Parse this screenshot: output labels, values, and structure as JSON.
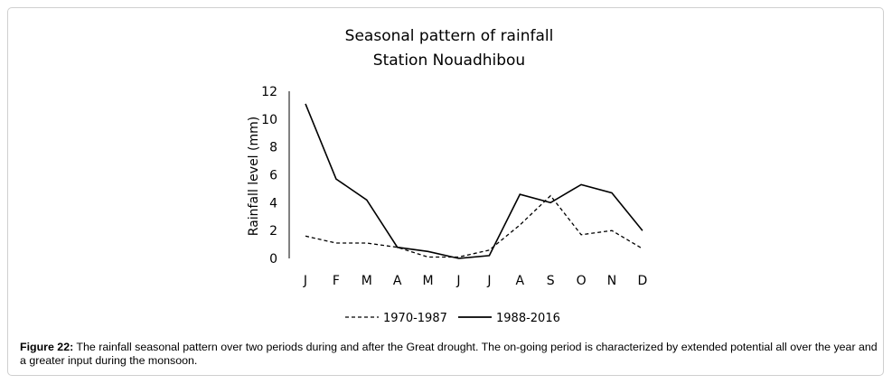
{
  "chart_data": {
    "type": "line",
    "title": "Seasonal pattern of rainfall",
    "subtitle": "Station  Nouadhibou",
    "xlabel": "",
    "ylabel": "Rainfall level (mm)",
    "categories": [
      "J",
      "F",
      "M",
      "A",
      "M",
      "J",
      "J",
      "A",
      "S",
      "O",
      "N",
      "D"
    ],
    "ylim": [
      0,
      12
    ],
    "yticks": [
      "0",
      "2",
      "4",
      "6",
      "8",
      "10",
      "12"
    ],
    "grid": false,
    "legend_position": "bottom",
    "series": [
      {
        "name": "1970-1987",
        "style": "dashed",
        "color": "#000000",
        "values": [
          1.6,
          1.1,
          1.1,
          0.8,
          0.1,
          0.1,
          0.6,
          2.4,
          4.5,
          1.7,
          2.0,
          0.7
        ]
      },
      {
        "name": "1988-2016",
        "style": "solid",
        "color": "#000000",
        "values": [
          11.1,
          5.7,
          4.2,
          0.8,
          0.5,
          0.0,
          0.2,
          4.6,
          4.0,
          5.3,
          4.7,
          2.0
        ]
      }
    ]
  },
  "caption": {
    "label": "Figure 22:",
    "text": " The rainfall seasonal pattern over two periods during and after the Great drought. The on-going period is characterized by extended potential all over the year and a greater input during the monsoon."
  }
}
